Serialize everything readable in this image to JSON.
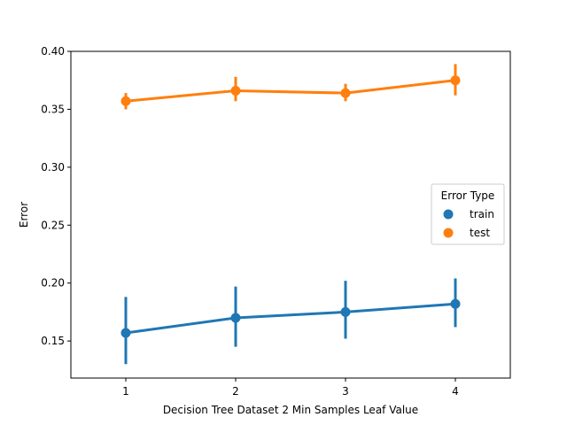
{
  "chart_data": {
    "type": "line",
    "title": "",
    "xlabel": "Decision Tree Dataset 2 Min Samples Leaf Value",
    "ylabel": "Error",
    "x": [
      "1",
      "2",
      "3",
      "4"
    ],
    "ylim": [
      0.118,
      0.4
    ],
    "yticks": [
      "0.15",
      "0.20",
      "0.25",
      "0.30",
      "0.35",
      "0.40"
    ],
    "grid": false,
    "legend": {
      "title": "Error Type",
      "placement": "center-right"
    },
    "series": [
      {
        "name": "train",
        "color": "#1f77b4",
        "values": [
          0.157,
          0.17,
          0.175,
          0.182
        ],
        "ci_low": [
          0.13,
          0.145,
          0.152,
          0.162
        ],
        "ci_high": [
          0.188,
          0.197,
          0.202,
          0.204
        ]
      },
      {
        "name": "test",
        "color": "#ff7f0e",
        "values": [
          0.357,
          0.366,
          0.364,
          0.375
        ],
        "ci_low": [
          0.35,
          0.357,
          0.357,
          0.362
        ],
        "ci_high": [
          0.364,
          0.378,
          0.372,
          0.389
        ]
      }
    ]
  }
}
